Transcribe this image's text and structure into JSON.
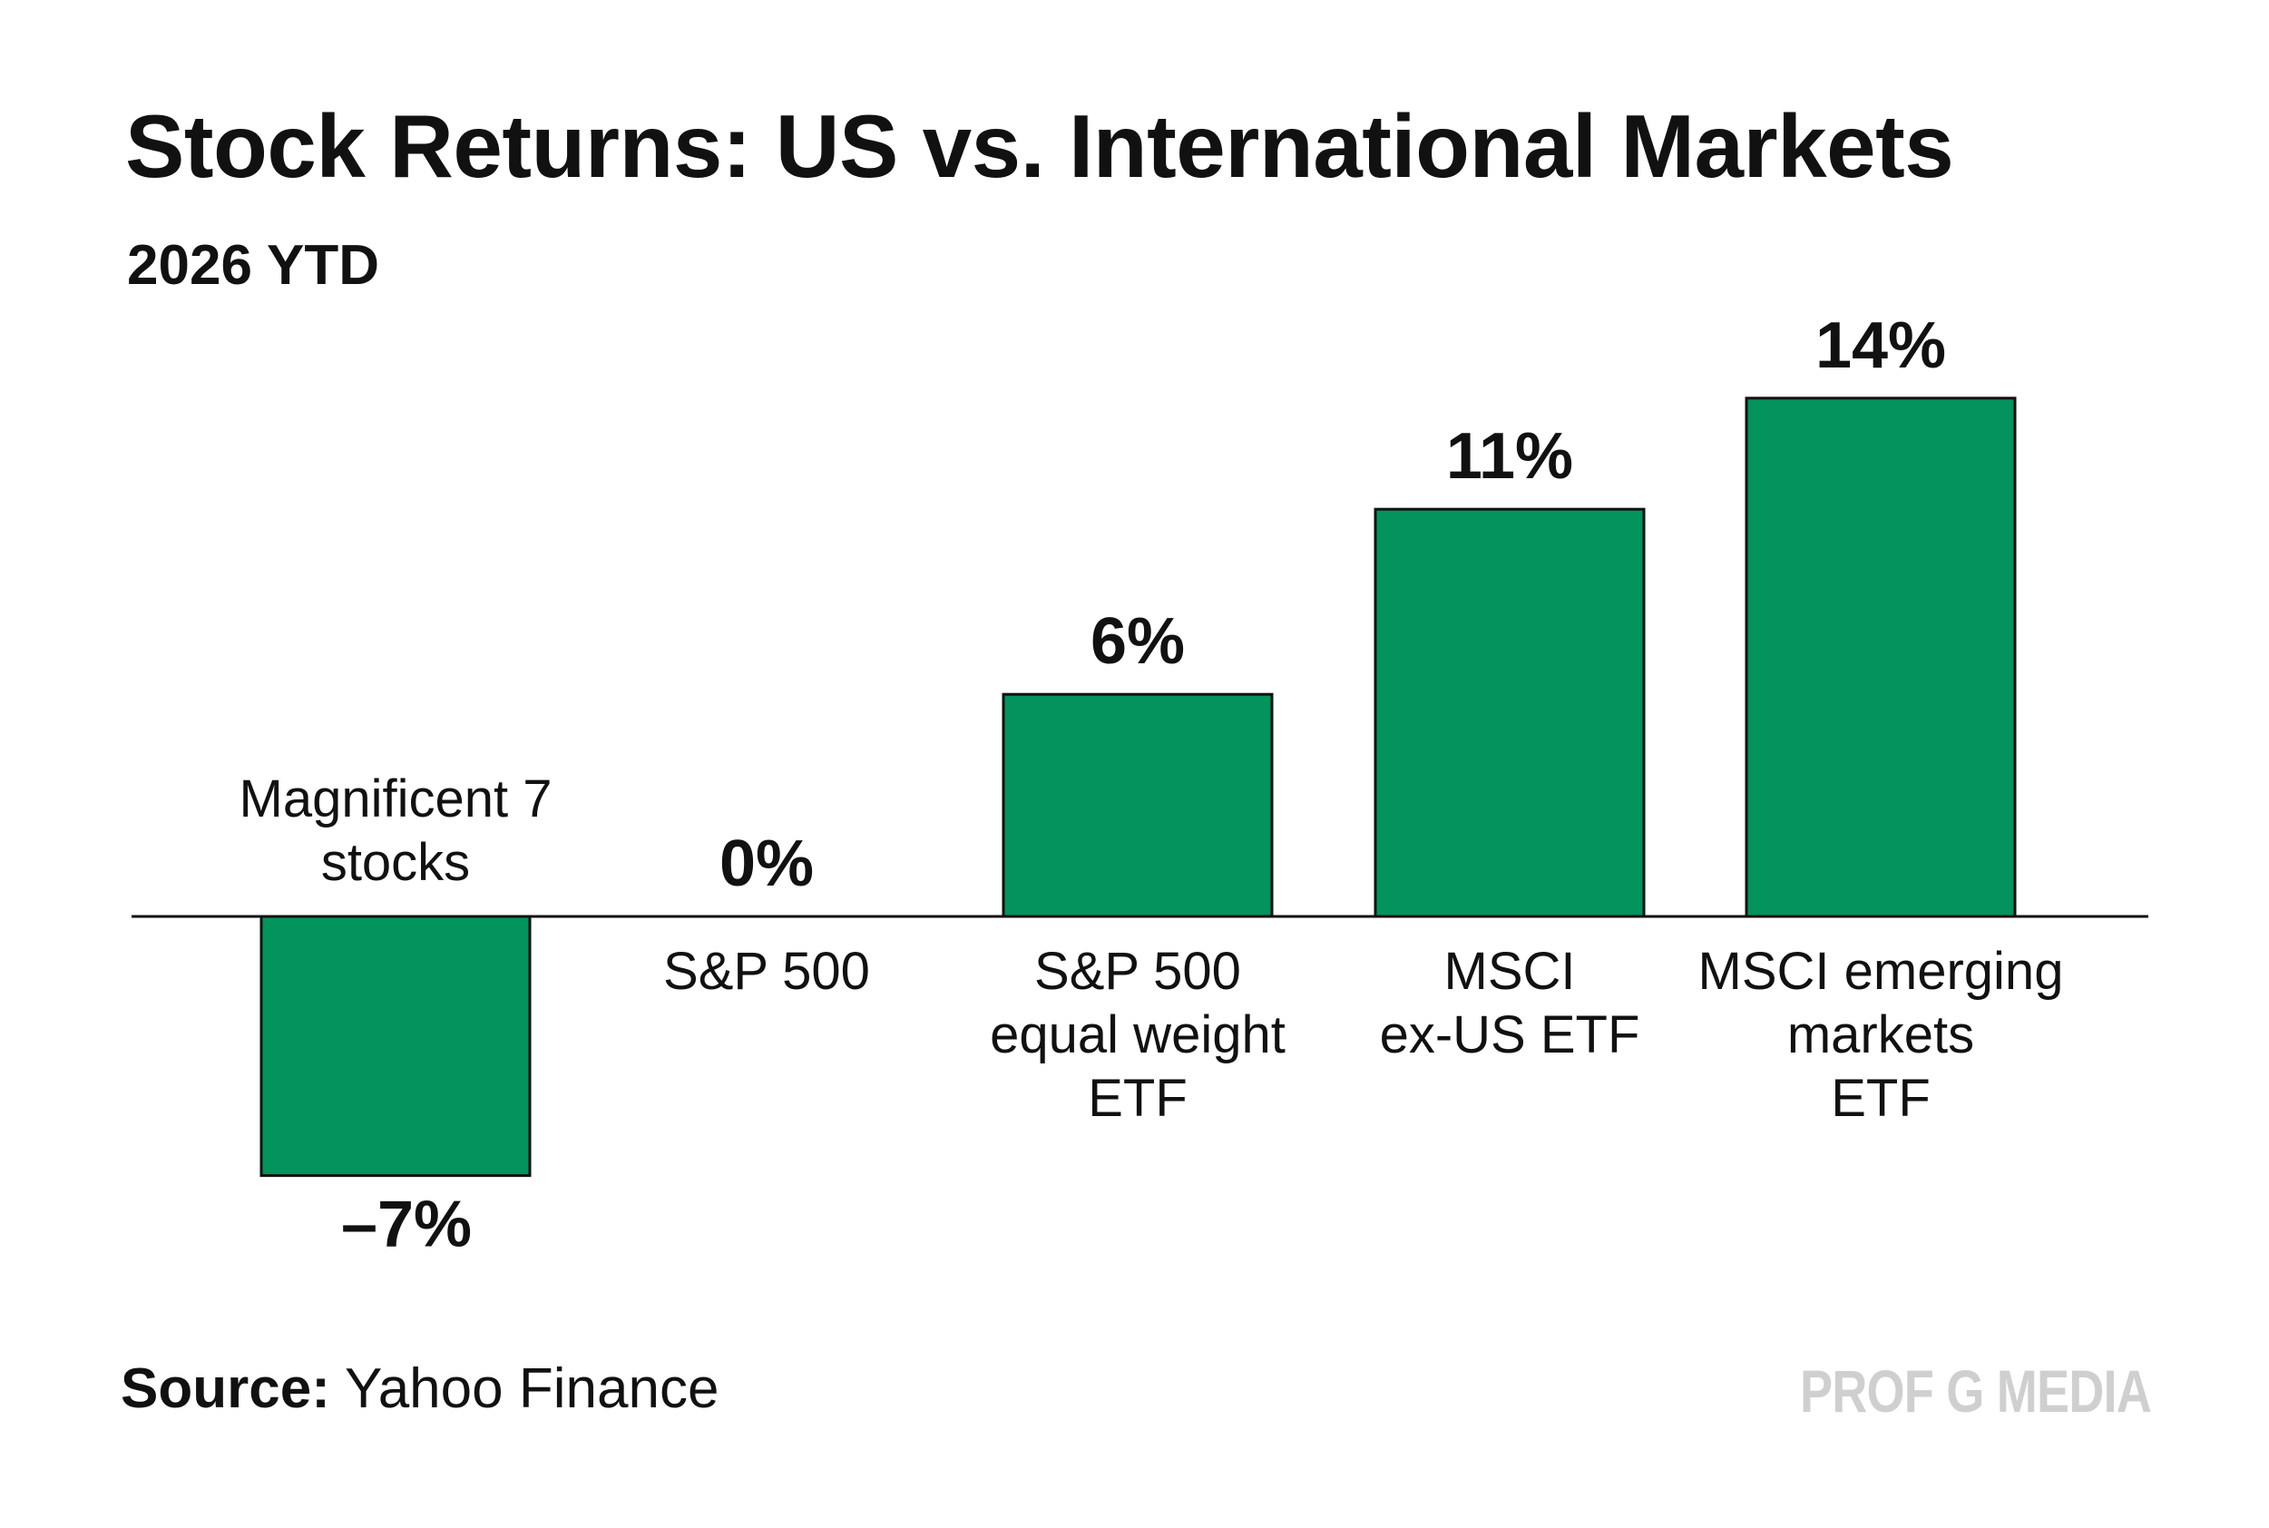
{
  "header": {
    "title": "Stock Returns: US vs. International Markets",
    "subtitle": "2026 YTD"
  },
  "chart_data": {
    "type": "bar",
    "title": "Stock Returns: US vs. International Markets",
    "subtitle": "2026 YTD",
    "categories": [
      [
        "Magnificent 7",
        "stocks"
      ],
      [
        "S&P 500"
      ],
      [
        "S&P 500",
        "equal weight",
        "ETF"
      ],
      [
        "MSCI",
        "ex-US ETF"
      ],
      [
        "MSCI emerging",
        "markets",
        "ETF"
      ]
    ],
    "values": [
      -7,
      0,
      6,
      11,
      14
    ],
    "value_labels": [
      "–7%",
      "0%",
      "6%",
      "11%",
      "14%"
    ],
    "unit": "%",
    "ylim": [
      -7,
      14
    ],
    "xlabel": "",
    "ylabel": "",
    "grid": false,
    "bar_color": "#03935d"
  },
  "footer": {
    "source_label": "Source:",
    "source_value": "Yahoo Finance",
    "brand": "PROF G MEDIA"
  },
  "colors": {
    "bar": "#03935d",
    "bar_stroke": "#111111",
    "text": "#111111",
    "brand": "#cfcfcf"
  }
}
